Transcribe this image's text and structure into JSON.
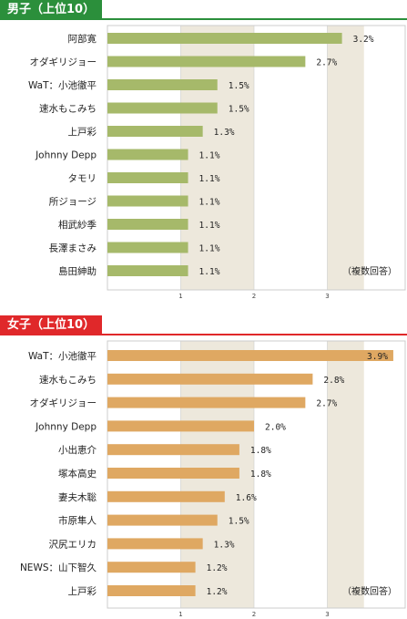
{
  "chart_data": [
    {
      "type": "bar",
      "orientation": "horizontal",
      "title": "男子（上位10）",
      "categories": [
        "阿部寛",
        "オダギリジョー",
        "WaT：小池徹平",
        "速水もこみち",
        "上戸彩",
        "Johnny Depp",
        "タモリ",
        "所ジョージ",
        "相武紗季",
        "長澤まさみ",
        "島田紳助"
      ],
      "values": [
        3.2,
        2.7,
        1.5,
        1.5,
        1.3,
        1.1,
        1.1,
        1.1,
        1.1,
        1.1,
        1.1
      ],
      "value_labels": [
        "3.2%",
        "2.7%",
        "1.5%",
        "1.5%",
        "1.3%",
        "1.1%",
        "1.1%",
        "1.1%",
        "1.1%",
        "1.1%",
        "1.1%"
      ],
      "ticks": [
        "1",
        "2",
        "3"
      ],
      "xlim": [
        0,
        3.5
      ],
      "note": "（複数回答）",
      "colors": {
        "bar": "#a6b96a",
        "title_bg": "#2b8f3b",
        "band": "#ede8dc",
        "grid": "#cccccc"
      }
    },
    {
      "type": "bar",
      "orientation": "horizontal",
      "title": "女子（上位10）",
      "categories": [
        "WaT：小池徹平",
        "速水もこみち",
        "オダギリジョー",
        "Johnny Depp",
        "小出恵介",
        "塚本高史",
        "妻夫木聡",
        "市原隼人",
        "沢尻エリカ",
        "NEWS：山下智久",
        "上戸彩"
      ],
      "values": [
        3.9,
        2.8,
        2.7,
        2.0,
        1.8,
        1.8,
        1.6,
        1.5,
        1.3,
        1.2,
        1.2
      ],
      "value_labels": [
        "3.9%",
        "2.8%",
        "2.7%",
        "2.0%",
        "1.8%",
        "1.8%",
        "1.6%",
        "1.5%",
        "1.3%",
        "1.2%",
        "1.2%"
      ],
      "ticks": [
        "1",
        "2",
        "3"
      ],
      "xlim": [
        0,
        3.5
      ],
      "note": "（複数回答）",
      "colors": {
        "bar": "#dfa862",
        "title_bg": "#e0282a",
        "band": "#ede8dc",
        "grid": "#cccccc"
      }
    }
  ]
}
